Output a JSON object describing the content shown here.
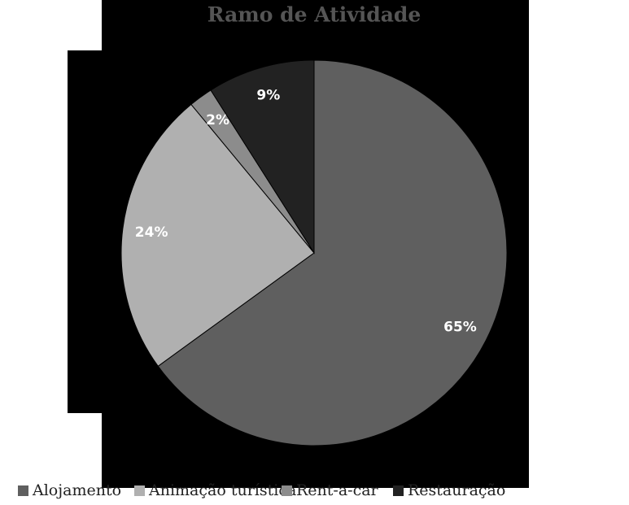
{
  "chart_data": {
    "type": "pie",
    "title": "Ramo de Atividade",
    "categories": [
      "Alojamento",
      "Animação turística",
      "Rent-a-car",
      "Restauração"
    ],
    "values": [
      65,
      24,
      2,
      9
    ],
    "value_labels": [
      "65%",
      "24%",
      "2%",
      "9%"
    ],
    "colors": [
      "#5f5f5f",
      "#b0b0b0",
      "#8c8c8c",
      "#222222"
    ],
    "legend": "bottom"
  }
}
